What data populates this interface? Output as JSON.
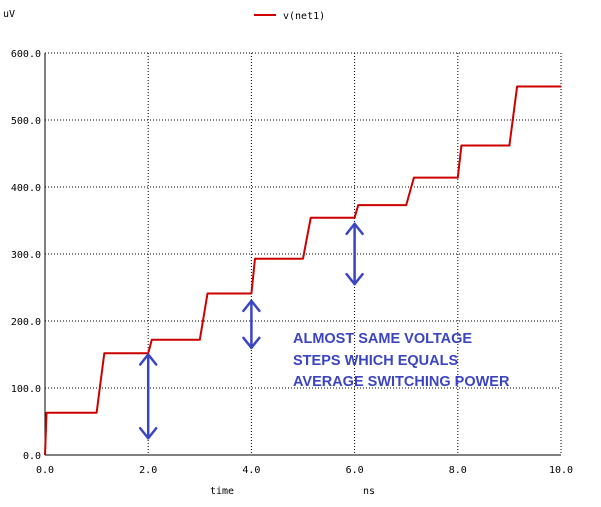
{
  "chart_data": {
    "type": "line",
    "ylabel": "uV",
    "xlabel": "time",
    "xunit": "ns",
    "xlim": [
      0,
      10
    ],
    "ylim": [
      0,
      600
    ],
    "xticks": [
      "0.0",
      "2.0",
      "4.0",
      "6.0",
      "8.0",
      "10.0"
    ],
    "yticks": [
      "0.0",
      "100.0",
      "200.0",
      "300.0",
      "400.0",
      "500.0",
      "600.0"
    ],
    "grid": true,
    "legend_position": "top-center",
    "series": [
      {
        "name": "v(net1)",
        "color": "#cc0000",
        "x": [
          0,
          0.03,
          1.0,
          1.15,
          2.0,
          2.07,
          3.0,
          3.15,
          4.0,
          4.07,
          5.0,
          5.15,
          6.0,
          6.07,
          7.0,
          7.15,
          8.0,
          8.07,
          9.0,
          9.15,
          10.0
        ],
        "y": [
          0,
          63,
          63,
          152,
          152,
          172,
          172,
          241,
          241,
          293,
          293,
          354,
          354,
          373,
          373,
          414,
          414,
          462,
          462,
          550,
          550
        ]
      }
    ],
    "annotation": {
      "lines": [
        "ALMOST SAME VOLTAGE",
        "STEPS WHICH EQUALS",
        "AVERAGE SWITCHING POWER"
      ],
      "color": "#3b45c2",
      "arrows": [
        {
          "x": 2.0,
          "y_from": 25,
          "y_to": 150
        },
        {
          "x": 4.0,
          "y_from": 160,
          "y_to": 230
        },
        {
          "x": 6.0,
          "y_from": 255,
          "y_to": 345
        }
      ]
    }
  }
}
